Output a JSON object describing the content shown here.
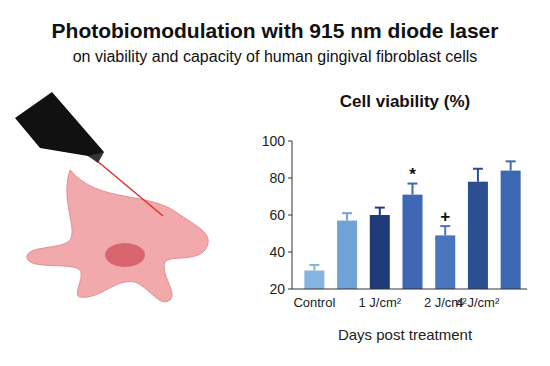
{
  "page": {
    "title": "Photobiomodulation with 915 nm diode laser",
    "subtitle": "on viability and capacity of human gingival fibroblast cells"
  },
  "chart_data": {
    "type": "bar",
    "title": "Cell viability (%)",
    "x_label": "Days post treatment",
    "categories": [
      "Control",
      null,
      "1 J/cm²",
      null,
      "2 J/cm²",
      "4 J/cm²",
      null
    ],
    "values": [
      30,
      57,
      60,
      71,
      49,
      78,
      84
    ],
    "errors": [
      3,
      4,
      4,
      6,
      5,
      7,
      5
    ],
    "annotations": [
      null,
      null,
      null,
      "*",
      "+",
      null,
      null
    ],
    "colors": [
      "#86b4e0",
      "#6fa3d8",
      "#1e3a78",
      "#3f67b3",
      "#4a76bf",
      "#2b4e91",
      "#3c68b2"
    ],
    "ylim": [
      20,
      100
    ],
    "yticks": [
      20,
      40,
      60,
      80,
      100
    ],
    "grid": false
  }
}
